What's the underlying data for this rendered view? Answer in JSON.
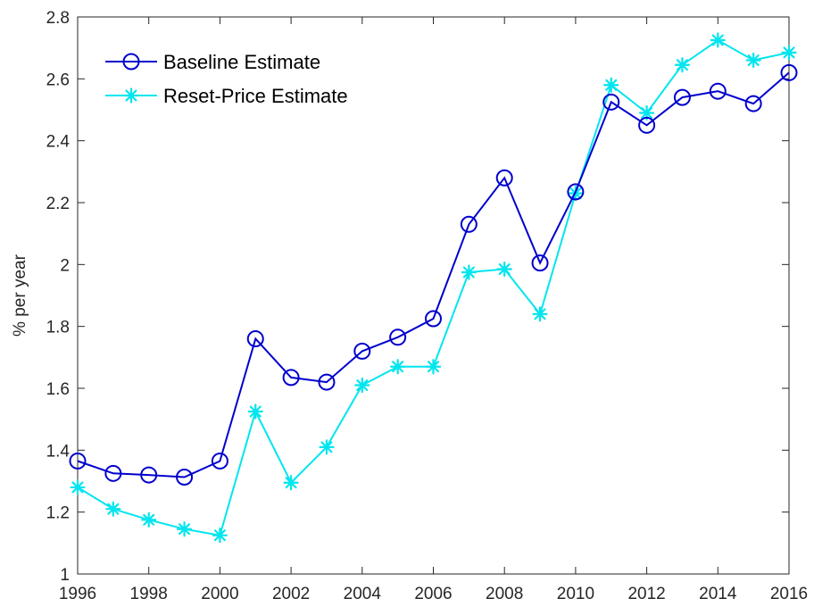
{
  "chart_data": {
    "type": "line",
    "title": "",
    "xlabel": "",
    "ylabel": "% per year",
    "xlim": [
      1996,
      2016
    ],
    "ylim": [
      1,
      2.8
    ],
    "xticks": [
      1996,
      1998,
      2000,
      2002,
      2004,
      2006,
      2008,
      2010,
      2012,
      2014,
      2016
    ],
    "yticks": [
      1,
      1.2,
      1.4,
      1.6,
      1.8,
      2,
      2.2,
      2.4,
      2.6,
      2.8
    ],
    "xtick_labels": [
      "1996",
      "1998",
      "2000",
      "2002",
      "2004",
      "2006",
      "2008",
      "2010",
      "2012",
      "2014",
      "2016"
    ],
    "ytick_labels": [
      "1",
      "1.2",
      "1.4",
      "1.6",
      "1.8",
      "2",
      "2.2",
      "2.4",
      "2.6",
      "2.8"
    ],
    "grid": false,
    "legend_position": "top-left",
    "x": [
      1996,
      1997,
      1998,
      1999,
      2000,
      2001,
      2002,
      2003,
      2004,
      2005,
      2006,
      2007,
      2008,
      2009,
      2010,
      2011,
      2012,
      2013,
      2014,
      2015,
      2016
    ],
    "series": [
      {
        "name": "Baseline Estimate",
        "color": "#0000CD",
        "marker": "circle",
        "values": [
          1.365,
          1.325,
          1.32,
          1.313,
          1.365,
          1.76,
          1.635,
          1.62,
          1.72,
          1.765,
          1.825,
          2.13,
          2.28,
          2.005,
          2.235,
          2.525,
          2.45,
          2.54,
          2.56,
          2.52,
          2.62
        ]
      },
      {
        "name": "Reset-Price Estimate",
        "color": "#00E5EE",
        "marker": "asterisk",
        "values": [
          1.28,
          1.21,
          1.175,
          1.145,
          1.125,
          1.525,
          1.295,
          1.41,
          1.61,
          1.67,
          1.67,
          1.975,
          1.985,
          1.84,
          2.23,
          2.58,
          2.49,
          2.645,
          2.725,
          2.66,
          2.685
        ]
      }
    ]
  }
}
